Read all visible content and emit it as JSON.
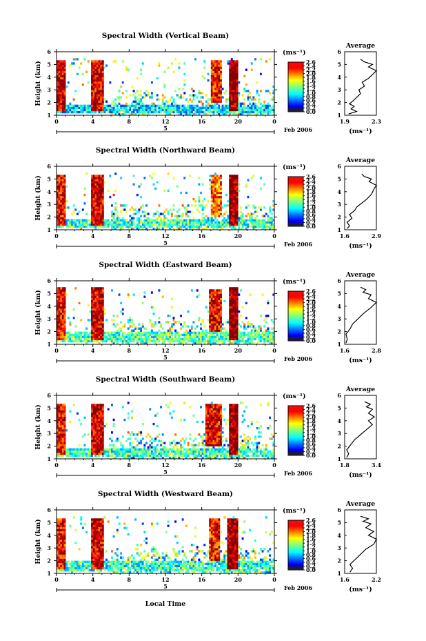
{
  "figure": {
    "xlabel": "Local Time",
    "date_label": "Feb 2006",
    "day_label": "5",
    "unit_label": "(ms⁻¹)",
    "avg_title": "Average",
    "avg_unit": "(ms⁻¹)",
    "colorbar_ticks": [
      "2.6",
      "2.4",
      "2.2",
      "2.0",
      "1.8",
      "1.6",
      "1.4",
      "1.2",
      "1.0",
      "0.8",
      "0.6",
      "0.4",
      "0.2",
      "0.0"
    ]
  },
  "chart_data": [
    {
      "type": "heatmap",
      "title": "Spectral Width (Vertical Beam)",
      "xlabel": "Local Time",
      "ylabel": "Height (km)",
      "xlim": [
        0,
        24
      ],
      "ylim": [
        1,
        6
      ],
      "xticks": [
        "0",
        "4",
        "8",
        "12",
        "16",
        "20",
        "0"
      ],
      "yticks": [
        "1",
        "2",
        "3",
        "4",
        "5",
        "6"
      ],
      "colorbar": {
        "label": "(ms⁻¹)",
        "range": [
          0.0,
          2.6
        ],
        "ticks": [
          "2.6",
          "2.4",
          "2.2",
          "2.0",
          "1.8",
          "1.6",
          "1.4",
          "1.2",
          "1.0",
          "0.8",
          "0.6",
          "0.4",
          "0.2",
          "0.0"
        ]
      },
      "regions": [
        {
          "t0": 0,
          "t1": 1.0,
          "h0": 1.3,
          "h1": 5.4,
          "value": 2.4
        },
        {
          "t0": 3.8,
          "t1": 5.2,
          "h0": 1.3,
          "h1": 5.4,
          "value": 2.4
        },
        {
          "t0": 0,
          "t1": 24,
          "h0": 1.1,
          "h1": 1.8,
          "value": 0.9
        },
        {
          "t0": 17.0,
          "t1": 18.2,
          "h0": 2.0,
          "h1": 5.4,
          "value": 2.2
        },
        {
          "t0": 19.0,
          "t1": 20.0,
          "h0": 1.4,
          "h1": 5.4,
          "value": 2.6
        }
      ],
      "average": {
        "title": "Average",
        "xlabel": "(ms⁻¹)",
        "xlim": [
          1.9,
          2.3
        ],
        "xticks": [
          "1.9",
          "2.3"
        ],
        "yticks": [
          "1",
          "2",
          "3",
          "4",
          "5",
          "6"
        ],
        "profile": [
          [
            1.95,
            1.1
          ],
          [
            2.05,
            1.3
          ],
          [
            1.98,
            1.5
          ],
          [
            2.02,
            1.7
          ],
          [
            1.96,
            1.9
          ],
          [
            2.0,
            2.1
          ],
          [
            2.05,
            2.4
          ],
          [
            2.1,
            2.7
          ],
          [
            2.08,
            3.0
          ],
          [
            2.15,
            3.3
          ],
          [
            2.12,
            3.6
          ],
          [
            2.2,
            3.9
          ],
          [
            2.25,
            4.2
          ],
          [
            2.3,
            4.5
          ],
          [
            2.2,
            4.8
          ],
          [
            2.25,
            5.0
          ],
          [
            2.15,
            5.2
          ],
          [
            2.1,
            5.4
          ]
        ]
      }
    },
    {
      "type": "heatmap",
      "title": "Spectral Width (Northward Beam)",
      "xlabel": "Local Time",
      "ylabel": "Height (km)",
      "xlim": [
        0,
        24
      ],
      "ylim": [
        1,
        6
      ],
      "xticks": [
        "0",
        "4",
        "8",
        "12",
        "16",
        "20",
        "0"
      ],
      "yticks": [
        "1",
        "2",
        "3",
        "4",
        "5",
        "6"
      ],
      "colorbar": {
        "label": "(ms⁻¹)",
        "range": [
          0.0,
          2.6
        ],
        "ticks": [
          "2.6",
          "2.4",
          "2.2",
          "2.0",
          "1.8",
          "1.6",
          "1.4",
          "1.2",
          "1.0",
          "0.8",
          "0.6",
          "0.4",
          "0.2",
          "0.0"
        ]
      },
      "regions": [
        {
          "t0": 0,
          "t1": 1.0,
          "h0": 1.3,
          "h1": 5.4,
          "value": 2.3
        },
        {
          "t0": 3.8,
          "t1": 5.2,
          "h0": 1.3,
          "h1": 5.4,
          "value": 2.4
        },
        {
          "t0": 0,
          "t1": 24,
          "h0": 1.1,
          "h1": 1.9,
          "value": 1.1
        },
        {
          "t0": 17.0,
          "t1": 18.2,
          "h0": 2.0,
          "h1": 5.4,
          "value": 2.0
        },
        {
          "t0": 19.0,
          "t1": 20.0,
          "h0": 1.4,
          "h1": 5.4,
          "value": 2.6
        }
      ],
      "average": {
        "title": "Average",
        "xlabel": "(ms⁻¹)",
        "xlim": [
          1.6,
          2.9
        ],
        "xticks": [
          "1.6",
          "2.9"
        ],
        "yticks": [
          "1",
          "2",
          "3",
          "4",
          "5",
          "6"
        ],
        "profile": [
          [
            1.7,
            1.1
          ],
          [
            1.8,
            1.3
          ],
          [
            1.7,
            1.6
          ],
          [
            1.9,
            1.9
          ],
          [
            1.8,
            2.2
          ],
          [
            2.0,
            2.5
          ],
          [
            2.1,
            2.8
          ],
          [
            2.3,
            3.1
          ],
          [
            2.5,
            3.4
          ],
          [
            2.7,
            3.8
          ],
          [
            2.8,
            4.2
          ],
          [
            2.9,
            4.5
          ],
          [
            2.6,
            4.8
          ],
          [
            2.7,
            5.0
          ],
          [
            2.4,
            5.2
          ],
          [
            2.3,
            5.4
          ]
        ]
      }
    },
    {
      "type": "heatmap",
      "title": "Spectral Width (Eastward Beam)",
      "xlabel": "Local Time",
      "ylabel": "Height (km)",
      "xlim": [
        0,
        24
      ],
      "ylim": [
        1,
        6
      ],
      "xticks": [
        "0",
        "4",
        "8",
        "12",
        "16",
        "20",
        "0"
      ],
      "yticks": [
        "1",
        "2",
        "3",
        "4",
        "5",
        "6"
      ],
      "colorbar": {
        "label": "(ms⁻¹)",
        "range": [
          0.0,
          2.6
        ],
        "ticks": [
          "2.6",
          "2.4",
          "2.2",
          "2.0",
          "1.8",
          "1.6",
          "1.4",
          "1.2",
          "1.0",
          "0.8",
          "0.6",
          "0.4",
          "0.2",
          "0.0"
        ]
      },
      "regions": [
        {
          "t0": 0,
          "t1": 1.0,
          "h0": 1.3,
          "h1": 5.5,
          "value": 2.3
        },
        {
          "t0": 3.8,
          "t1": 5.2,
          "h0": 1.3,
          "h1": 5.5,
          "value": 2.4
        },
        {
          "t0": 0,
          "t1": 24,
          "h0": 1.1,
          "h1": 2.0,
          "value": 1.2
        },
        {
          "t0": 16.8,
          "t1": 18.2,
          "h0": 2.0,
          "h1": 5.3,
          "value": 2.3
        },
        {
          "t0": 19.0,
          "t1": 20.0,
          "h0": 1.4,
          "h1": 5.5,
          "value": 2.6
        }
      ],
      "average": {
        "title": "Average",
        "xlabel": "(ms⁻¹)",
        "xlim": [
          1.6,
          2.8
        ],
        "xticks": [
          "1.6",
          "2.8"
        ],
        "yticks": [
          "1",
          "2",
          "3",
          "4",
          "5",
          "6"
        ],
        "profile": [
          [
            1.65,
            1.1
          ],
          [
            1.7,
            1.4
          ],
          [
            1.65,
            1.8
          ],
          [
            1.8,
            2.2
          ],
          [
            1.9,
            2.6
          ],
          [
            2.1,
            3.0
          ],
          [
            2.3,
            3.4
          ],
          [
            2.6,
            3.9
          ],
          [
            2.8,
            4.3
          ],
          [
            2.5,
            4.6
          ],
          [
            2.6,
            4.9
          ],
          [
            2.3,
            5.1
          ],
          [
            2.4,
            5.3
          ],
          [
            2.2,
            5.5
          ]
        ]
      }
    },
    {
      "type": "heatmap",
      "title": "Spectral Width (Southward Beam)",
      "xlabel": "Local Time",
      "ylabel": "Height (km)",
      "xlim": [
        0,
        24
      ],
      "ylim": [
        1,
        6
      ],
      "xticks": [
        "0",
        "4",
        "8",
        "12",
        "16",
        "20",
        "0"
      ],
      "yticks": [
        "1",
        "2",
        "3",
        "4",
        "5",
        "6"
      ],
      "colorbar": {
        "label": "(ms⁻¹)",
        "range": [
          0.0,
          2.6
        ],
        "ticks": [
          "2.6",
          "2.4",
          "2.2",
          "2.0",
          "1.8",
          "1.6",
          "1.4",
          "1.2",
          "1.0",
          "0.8",
          "0.6",
          "0.4",
          "0.2",
          "0.0"
        ]
      },
      "regions": [
        {
          "t0": 0,
          "t1": 1.0,
          "h0": 1.3,
          "h1": 5.4,
          "value": 2.3
        },
        {
          "t0": 3.8,
          "t1": 5.2,
          "h0": 1.3,
          "h1": 5.4,
          "value": 2.4
        },
        {
          "t0": 0,
          "t1": 24,
          "h0": 1.1,
          "h1": 1.9,
          "value": 1.1
        },
        {
          "t0": 16.5,
          "t1": 18.2,
          "h0": 2.0,
          "h1": 5.3,
          "value": 2.3
        },
        {
          "t0": 19.0,
          "t1": 20.0,
          "h0": 1.4,
          "h1": 5.4,
          "value": 2.6
        }
      ],
      "average": {
        "title": "Average",
        "xlabel": "(ms⁻¹)",
        "xlim": [
          1.8,
          3.4
        ],
        "xticks": [
          "1.8",
          "3.4"
        ],
        "yticks": [
          "1",
          "2",
          "3",
          "4",
          "5",
          "6"
        ],
        "profile": [
          [
            1.9,
            1.1
          ],
          [
            2.0,
            1.4
          ],
          [
            1.9,
            1.7
          ],
          [
            2.1,
            2.1
          ],
          [
            2.3,
            2.5
          ],
          [
            2.6,
            2.9
          ],
          [
            2.9,
            3.3
          ],
          [
            3.2,
            3.7
          ],
          [
            3.0,
            4.0
          ],
          [
            3.3,
            4.3
          ],
          [
            3.0,
            4.6
          ],
          [
            3.2,
            4.9
          ],
          [
            2.9,
            5.1
          ],
          [
            3.1,
            5.3
          ],
          [
            2.8,
            5.5
          ]
        ]
      }
    },
    {
      "type": "heatmap",
      "title": "Spectral Width (Westward Beam)",
      "xlabel": "Local Time",
      "ylabel": "Height (km)",
      "xlim": [
        0,
        24
      ],
      "ylim": [
        1,
        6
      ],
      "xticks": [
        "0",
        "4",
        "8",
        "12",
        "16",
        "20",
        "0"
      ],
      "yticks": [
        "1",
        "2",
        "3",
        "4",
        "5",
        "6"
      ],
      "colorbar": {
        "label": "(ms⁻¹)",
        "range": [
          0.0,
          2.6
        ],
        "ticks": [
          "2.6",
          "2.4",
          "2.2",
          "2.0",
          "1.8",
          "1.6",
          "1.4",
          "1.2",
          "1.0",
          "0.8",
          "0.6",
          "0.4",
          "0.2",
          "0.0"
        ]
      },
      "regions": [
        {
          "t0": 0,
          "t1": 1.0,
          "h0": 1.3,
          "h1": 5.4,
          "value": 2.3
        },
        {
          "t0": 3.8,
          "t1": 5.2,
          "h0": 1.3,
          "h1": 5.4,
          "value": 2.4
        },
        {
          "t0": 0,
          "t1": 24,
          "h0": 1.1,
          "h1": 2.0,
          "value": 1.1
        },
        {
          "t0": 16.8,
          "t1": 18.0,
          "h0": 2.0,
          "h1": 5.3,
          "value": 2.2
        },
        {
          "t0": 18.8,
          "t1": 20.0,
          "h0": 1.4,
          "h1": 5.4,
          "value": 2.6
        }
      ],
      "average": {
        "title": "Average",
        "xlabel": "(ms⁻¹)",
        "xlim": [
          1.6,
          2.2
        ],
        "xticks": [
          "1.6",
          "2.2"
        ],
        "yticks": [
          "1",
          "2",
          "3",
          "4",
          "5",
          "6"
        ],
        "profile": [
          [
            1.7,
            1.1
          ],
          [
            1.75,
            1.4
          ],
          [
            1.7,
            1.7
          ],
          [
            1.8,
            2.1
          ],
          [
            1.9,
            2.5
          ],
          [
            2.0,
            2.9
          ],
          [
            2.15,
            3.3
          ],
          [
            2.2,
            3.7
          ],
          [
            2.05,
            4.0
          ],
          [
            2.15,
            4.3
          ],
          [
            2.0,
            4.6
          ],
          [
            2.1,
            4.9
          ],
          [
            1.95,
            5.1
          ],
          [
            2.05,
            5.3
          ],
          [
            1.9,
            5.5
          ]
        ]
      }
    }
  ]
}
